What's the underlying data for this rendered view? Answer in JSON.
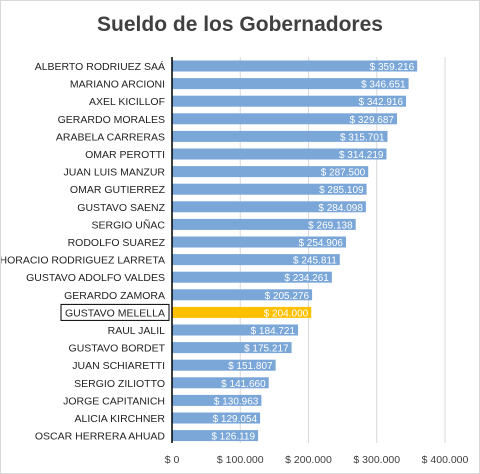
{
  "chart_data": {
    "type": "bar",
    "orientation": "horizontal",
    "title": "Sueldo de los Gobernadores",
    "xlabel": "",
    "ylabel": "",
    "xlim": [
      0,
      400000
    ],
    "x_ticks": [
      "$ 0",
      "$ 100.000",
      "$ 200.000",
      "$ 300.000",
      "$ 400.000"
    ],
    "grid": "vertical",
    "legend": "none",
    "bar_color": "#7aa6d8",
    "highlight_color": "#ffc000",
    "highlight_category": "GUSTAVO MELELLA",
    "highlight_boxed": true,
    "categories": [
      "ALBERTO RODRIUEZ SAÁ",
      "MARIANO ARCIONI",
      "AXEL KICILLOF",
      "GERARDO MORALES",
      "ARABELA CARRERAS",
      "OMAR PEROTTI",
      "JUAN LUIS MANZUR",
      "OMAR GUTIERREZ",
      "GUSTAVO SAENZ",
      "SERGIO UÑAC",
      "RODOLFO SUAREZ",
      "HORACIO RODRIGUEZ LARRETA",
      "GUSTAVO ADOLFO VALDES",
      "GERARDO ZAMORA",
      "GUSTAVO MELELLA",
      "RAUL JALIL",
      "GUSTAVO BORDET",
      "JUAN SCHIARETTI",
      "SERGIO ZILIOTTO",
      "JORGE CAPITANICH",
      "ALICIA KIRCHNER",
      "OSCAR HERRERA AHUAD"
    ],
    "values": [
      359216,
      346651,
      342916,
      329687,
      315701,
      314219,
      287500,
      285109,
      284098,
      269138,
      254906,
      245811,
      234261,
      205276,
      204000,
      184721,
      175217,
      151807,
      141660,
      130963,
      129054,
      126119
    ],
    "value_labels": [
      "$ 359.216",
      "$ 346.651",
      "$ 342.916",
      "$ 329.687",
      "$ 315.701",
      "$ 314.219",
      "$ 287.500",
      "$ 285.109",
      "$ 284.098",
      "$ 269.138",
      "$ 254.906",
      "$ 245.811",
      "$ 234.261",
      "$ 205.276",
      "$ 204.000",
      "$ 184.721",
      "$ 175.217",
      "$ 151.807",
      "$ 141.660",
      "$ 130.963",
      "$ 129.054",
      "$ 126.119"
    ]
  }
}
